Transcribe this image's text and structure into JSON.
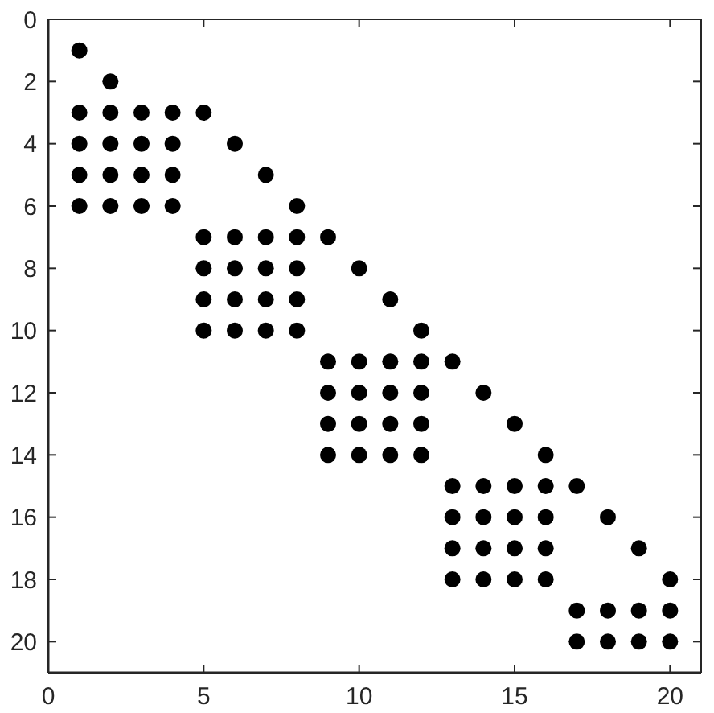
{
  "chart_data": {
    "type": "scatter",
    "x": [
      1,
      2,
      1,
      2,
      3,
      4,
      5,
      1,
      2,
      3,
      4,
      6,
      1,
      2,
      3,
      4,
      7,
      1,
      2,
      3,
      4,
      8,
      5,
      6,
      7,
      8,
      9,
      5,
      6,
      7,
      8,
      10,
      5,
      6,
      7,
      8,
      11,
      5,
      6,
      7,
      8,
      12,
      9,
      10,
      11,
      12,
      13,
      9,
      10,
      11,
      12,
      14,
      9,
      10,
      11,
      12,
      15,
      9,
      10,
      11,
      12,
      16,
      13,
      14,
      15,
      16,
      17,
      13,
      14,
      15,
      16,
      18,
      13,
      14,
      15,
      16,
      19,
      13,
      14,
      15,
      16,
      20,
      17,
      18,
      19,
      20,
      17,
      18,
      19,
      20
    ],
    "values": [
      1,
      2,
      3,
      3,
      3,
      3,
      3,
      4,
      4,
      4,
      4,
      4,
      5,
      5,
      5,
      5,
      5,
      6,
      6,
      6,
      6,
      6,
      7,
      7,
      7,
      7,
      7,
      8,
      8,
      8,
      8,
      8,
      9,
      9,
      9,
      9,
      9,
      10,
      10,
      10,
      10,
      10,
      11,
      11,
      11,
      11,
      11,
      12,
      12,
      12,
      12,
      12,
      13,
      13,
      13,
      13,
      13,
      14,
      14,
      14,
      14,
      14,
      15,
      15,
      15,
      15,
      15,
      16,
      16,
      16,
      16,
      16,
      17,
      17,
      17,
      17,
      17,
      18,
      18,
      18,
      18,
      18,
      19,
      19,
      19,
      19,
      20,
      20,
      20,
      20
    ],
    "color": "#000000",
    "marker": "circle",
    "xlim": [
      0,
      21
    ],
    "ylim": [
      21,
      0
    ],
    "xticks": [
      0,
      5,
      10,
      15,
      20
    ],
    "yticks": [
      0,
      2,
      4,
      6,
      8,
      10,
      12,
      14,
      16,
      18,
      20
    ]
  }
}
